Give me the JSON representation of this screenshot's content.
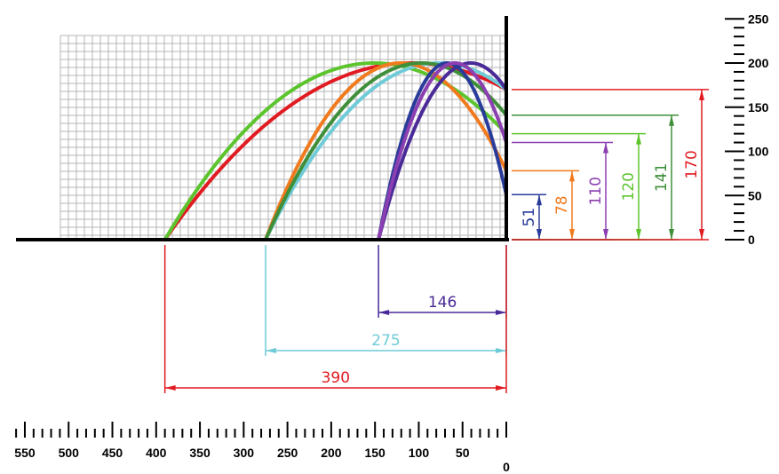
{
  "chart_data": {
    "type": "line",
    "x_scale": {
      "min": 0,
      "max": 550,
      "reversed": true,
      "tick_labels": [
        "550",
        "500",
        "450",
        "400",
        "350",
        "300",
        "250",
        "200",
        "150",
        "100",
        "50",
        "0"
      ]
    },
    "y_scale": {
      "min": 0,
      "max": 250,
      "tick_labels": [
        "250",
        "200",
        "150",
        "100",
        "50",
        "0"
      ]
    },
    "launch_points": [
      390,
      275,
      146
    ],
    "max_height": 200,
    "series": [
      {
        "x_start": 390,
        "height_at_wall": 170,
        "color": "#e11b22",
        "family": "390"
      },
      {
        "x_start": 390,
        "height_at_wall": 120,
        "color": "#5cc42d",
        "family": "390"
      },
      {
        "x_start": 275,
        "height_at_wall": 170,
        "color": "#6fcbd8",
        "family": "275"
      },
      {
        "x_start": 275,
        "height_at_wall": 78,
        "color": "#f07a1d",
        "family": "275"
      },
      {
        "x_start": 275,
        "height_at_wall": 141,
        "color": "#3f8f3a",
        "family": "275"
      },
      {
        "x_start": 146,
        "height_at_wall": 170,
        "color": "#4a2a98",
        "family": "146"
      },
      {
        "x_start": 146,
        "height_at_wall": 51,
        "color": "#2a3c9a",
        "family": "146"
      },
      {
        "x_start": 146,
        "height_at_wall": 110,
        "color": "#8b3fb0",
        "family": "146"
      }
    ],
    "horizontal_dimensions": [
      {
        "label": "146",
        "color": "#4a2a98"
      },
      {
        "label": "275",
        "color": "#6fcbd8"
      },
      {
        "label": "390",
        "color": "#e11b22"
      }
    ],
    "vertical_dimensions": [
      {
        "label": "51",
        "value": 51,
        "color": "#2a3c9a"
      },
      {
        "label": "78",
        "value": 78,
        "color": "#f07a1d"
      },
      {
        "label": "110",
        "value": 110,
        "color": "#8b3fb0"
      },
      {
        "label": "120",
        "value": 120,
        "color": "#5cc42d"
      },
      {
        "label": "141",
        "value": 141,
        "color": "#3f8f3a"
      },
      {
        "label": "170",
        "value": 170,
        "color": "#e11b22"
      }
    ],
    "grid": true
  }
}
